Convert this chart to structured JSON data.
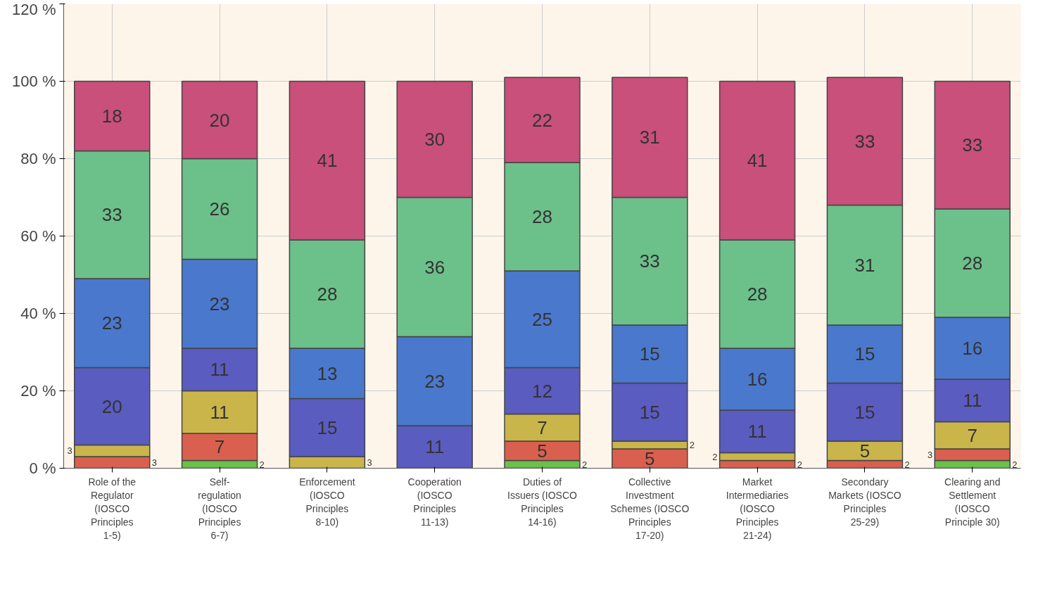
{
  "chart_data": {
    "type": "bar",
    "stacked": true,
    "data_labels": true,
    "grid": true,
    "categories": [
      "Role of the Regulator (IOSCO Principles 1-5)",
      "Self-regulation (IOSCO Principles 6-7)",
      "Enforcement (IOSCO Principles 8-10)",
      "Cooperation (IOSCO Principles 11-13)",
      "Duties of Issuers (IOSCO Principles 14-16)",
      "Collective Investment Schemes (IOSCO Principles 17-20)",
      "Market Intermediaries (IOSCO Principles 21-24)",
      "Secondary Markets (IOSCO Principles 25-29)",
      "Clearing and Settlement (IOSCO Principle 30)"
    ],
    "ylim": [
      0,
      120
    ],
    "yticks": [
      {
        "value": 0,
        "label": "0 %"
      },
      {
        "value": 20,
        "label": "20 %"
      },
      {
        "value": 40,
        "label": "40 %"
      },
      {
        "value": 60,
        "label": "60 %"
      },
      {
        "value": 80,
        "label": "80 %"
      },
      {
        "value": 100,
        "label": "100 %"
      },
      {
        "value": 120,
        "label": "120 %"
      }
    ],
    "series": [
      {
        "color": "#6cc04a",
        "values": [
          null,
          2,
          null,
          null,
          2,
          null,
          null,
          null,
          2
        ]
      },
      {
        "color": "#d9604f",
        "values": [
          3,
          7,
          null,
          null,
          5,
          5,
          2,
          2,
          3
        ]
      },
      {
        "color": "#c9b54a",
        "values": [
          3,
          11,
          3,
          null,
          7,
          2,
          2,
          5,
          7
        ]
      },
      {
        "color": "#5a5cc0",
        "values": [
          20,
          11,
          15,
          11,
          12,
          15,
          11,
          15,
          11
        ]
      },
      {
        "color": "#4a78cc",
        "values": [
          23,
          23,
          13,
          23,
          25,
          15,
          16,
          15,
          16
        ]
      },
      {
        "color": "#6cc08a",
        "values": [
          33,
          26,
          28,
          36,
          28,
          33,
          28,
          31,
          28
        ]
      },
      {
        "color": "#c8507a",
        "values": [
          18,
          20,
          41,
          30,
          22,
          31,
          41,
          33,
          33
        ]
      }
    ]
  }
}
